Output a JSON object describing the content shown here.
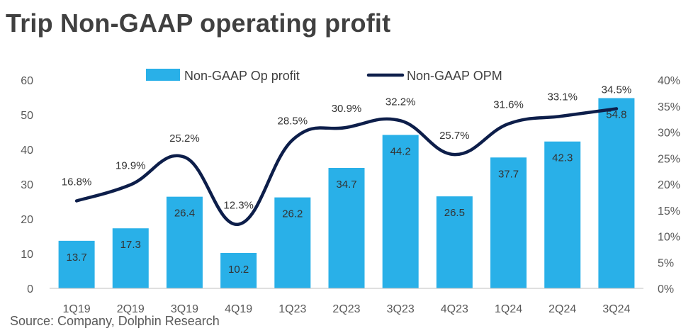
{
  "title": "Trip Non-GAAP operating profit",
  "source": "Source: Company, Dolphin Research",
  "colors": {
    "bar": "#29B0E8",
    "line": "#0D1E4A",
    "text": "#404040",
    "axis": "#BFBFBF"
  },
  "chart_data": {
    "type": "bar",
    "title": "Trip Non-GAAP operating profit",
    "categories": [
      "1Q19",
      "2Q19",
      "3Q19",
      "4Q19",
      "1Q23",
      "2Q23",
      "3Q23",
      "4Q23",
      "1Q24",
      "2Q24",
      "3Q24"
    ],
    "series": [
      {
        "name": "Non-GAAP Op profit",
        "type": "bar",
        "axis": "left",
        "values": [
          13.7,
          17.3,
          26.4,
          10.2,
          26.2,
          34.7,
          44.2,
          26.5,
          37.7,
          42.3,
          54.8
        ],
        "labels": [
          "13.7",
          "17.3",
          "26.4",
          "10.2",
          "26.2",
          "34.7",
          "44.2",
          "26.5",
          "37.7",
          "42.3",
          "54.8"
        ]
      },
      {
        "name": "Non-GAAP OPM",
        "type": "line",
        "axis": "right",
        "values": [
          16.8,
          19.9,
          25.2,
          12.3,
          28.5,
          30.9,
          32.2,
          25.7,
          31.6,
          33.1,
          34.5
        ],
        "labels": [
          "16.8%",
          "19.9%",
          "25.2%",
          "12.3%",
          "28.5%",
          "30.9%",
          "32.2%",
          "25.7%",
          "31.6%",
          "33.1%",
          "34.5%"
        ]
      }
    ],
    "y_left": {
      "ylim": [
        0,
        60
      ],
      "ticks": [
        "0",
        "10",
        "20",
        "30",
        "40",
        "50",
        "60"
      ]
    },
    "y_right": {
      "ylim": [
        0,
        40
      ],
      "ticks": [
        "0%",
        "5%",
        "10%",
        "15%",
        "20%",
        "25%",
        "30%",
        "35%",
        "40%"
      ]
    },
    "legend_position": "top",
    "grid": false
  }
}
